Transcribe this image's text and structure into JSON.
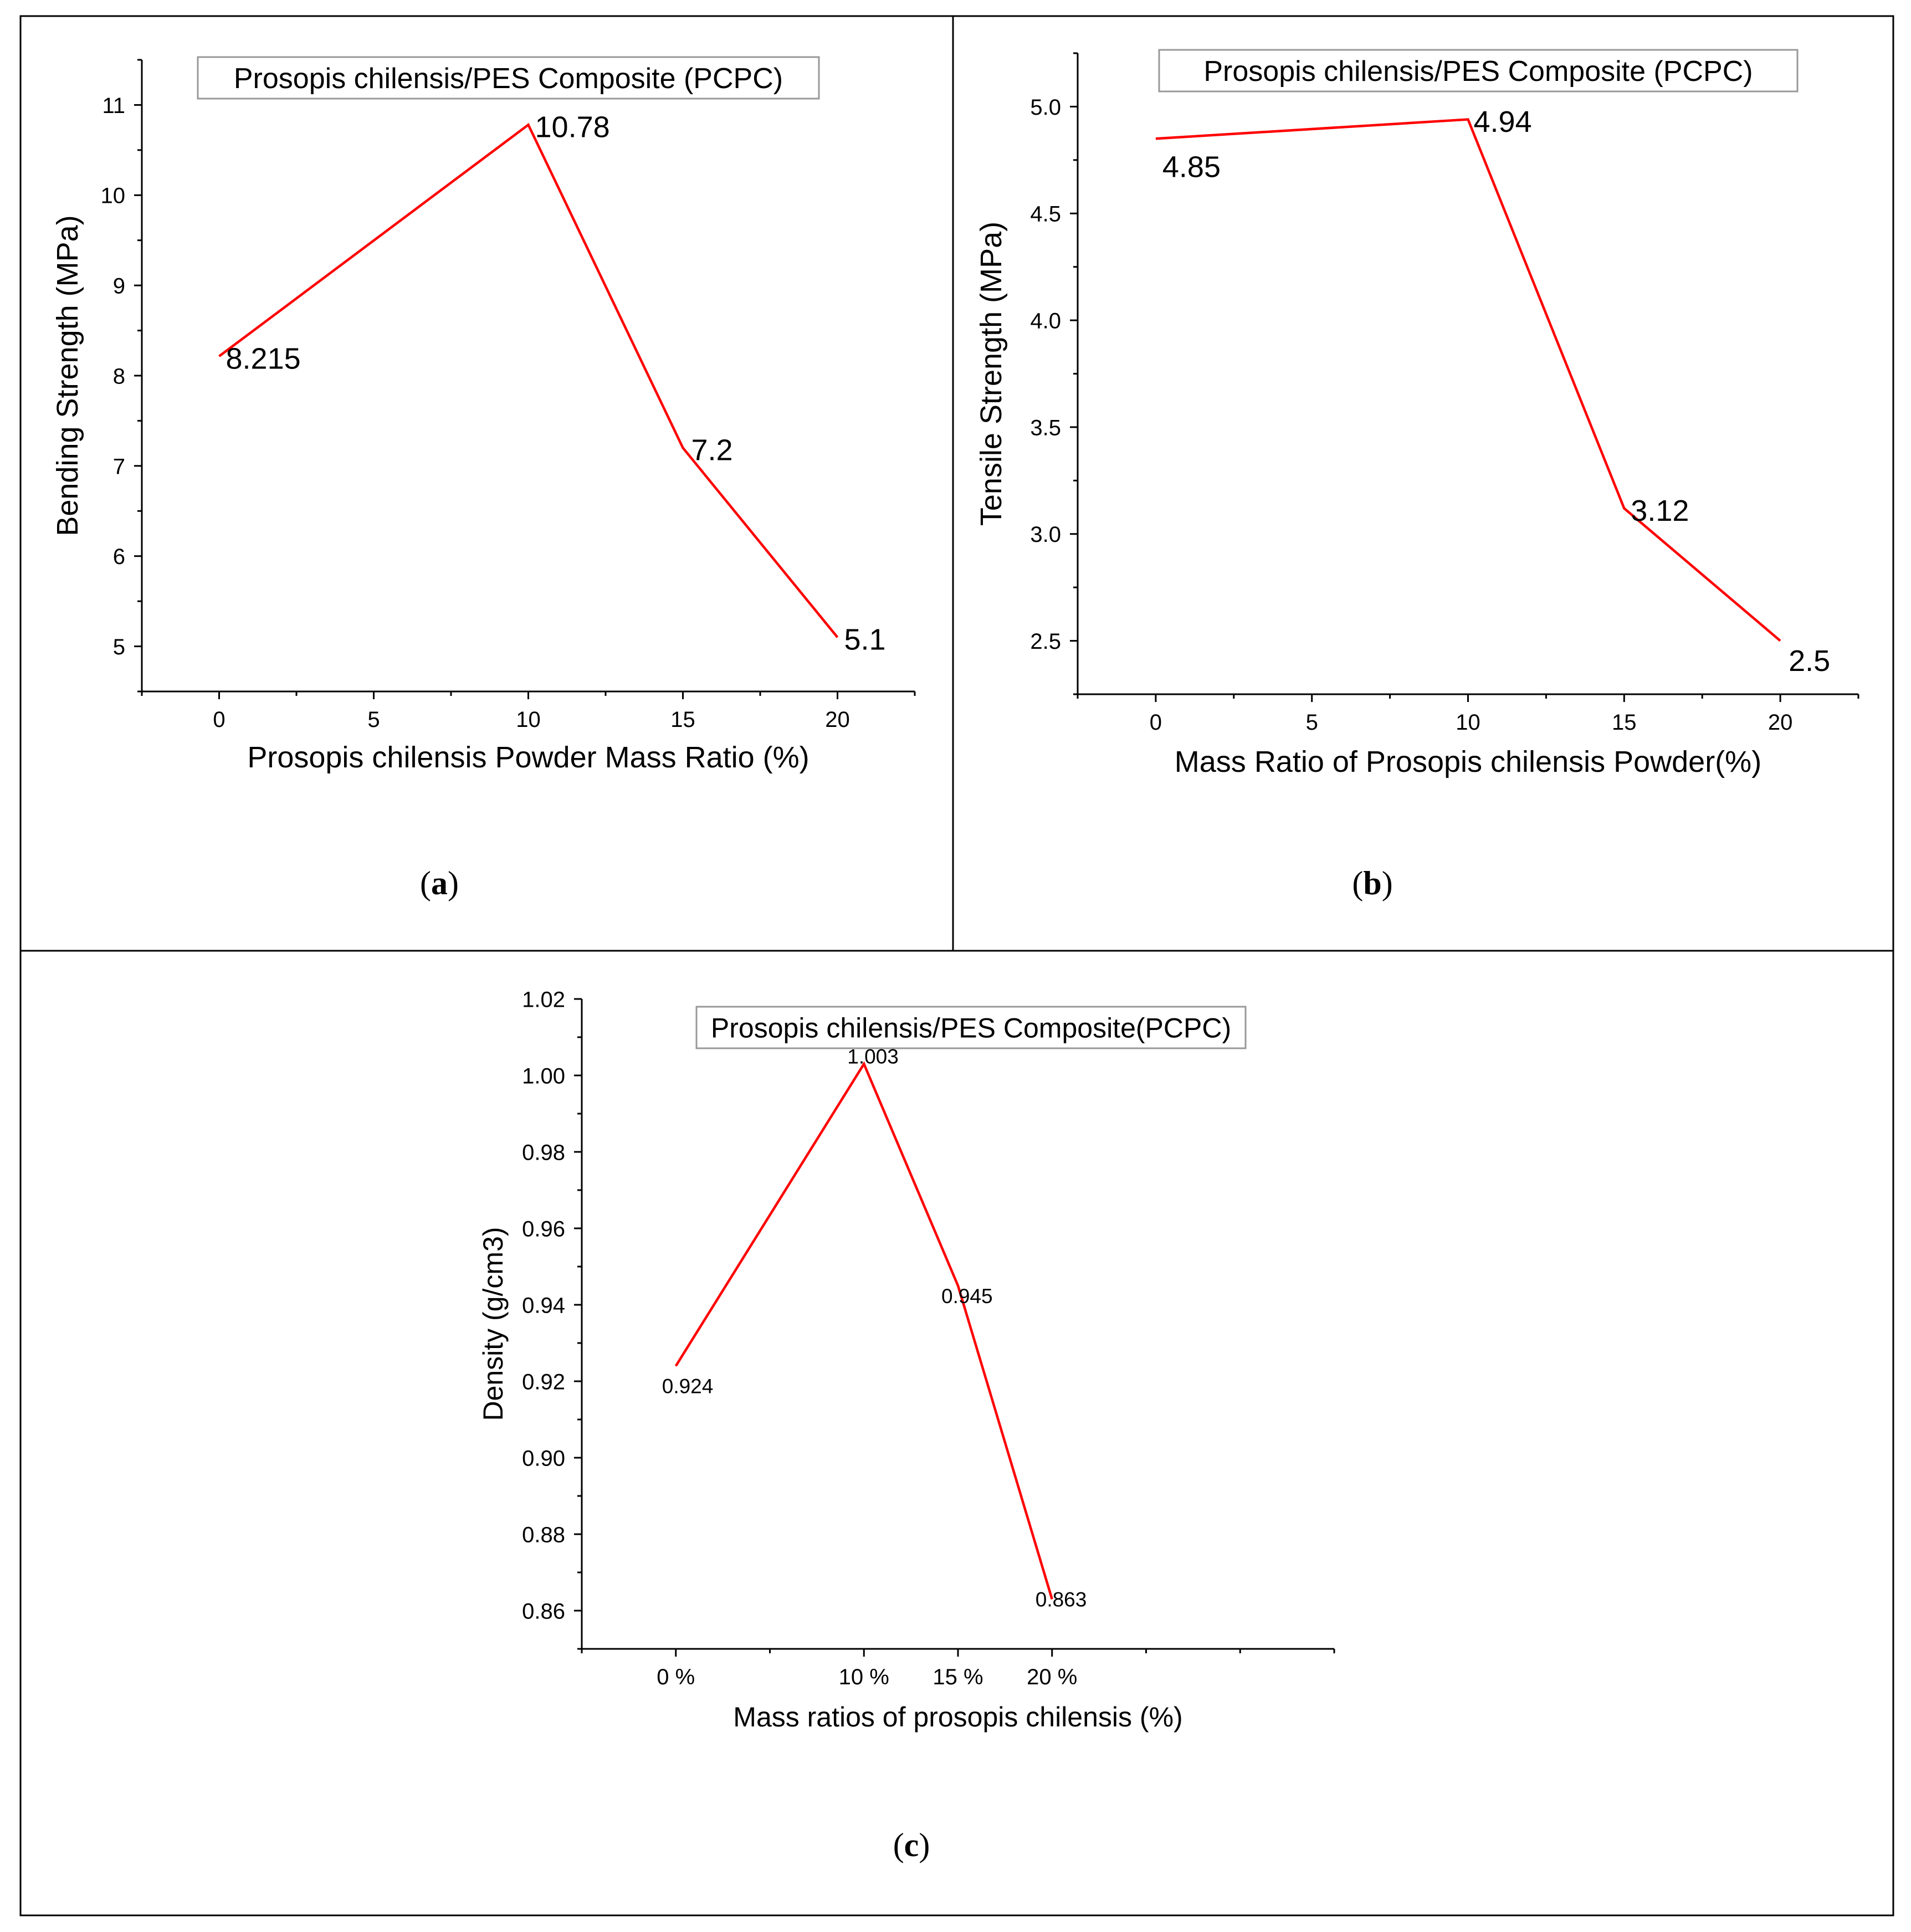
{
  "chart_data": [
    {
      "id": "a",
      "type": "line",
      "panel_label": "a",
      "title": "Prosopis chilensis/PES Composite (PCPC)",
      "xlabel": "Prosopis chilensis Powder Mass Ratio (%)",
      "ylabel": "Bending Strength (MPa)",
      "x": [
        0,
        10,
        15,
        20
      ],
      "values": [
        8.215,
        10.78,
        7.2,
        5.1
      ],
      "data_labels": [
        "8.215",
        "10.78",
        "7.2",
        "5.1"
      ],
      "xlim": [
        -2.5,
        22.5
      ],
      "ylim": [
        4.5,
        11.5
      ],
      "x_ticks": [
        0,
        5,
        10,
        15,
        20
      ],
      "x_tick_labels": [
        "0",
        "5",
        "10",
        "15",
        "20"
      ],
      "y_ticks": [
        5,
        6,
        7,
        8,
        9,
        10,
        11
      ],
      "y_tick_labels": [
        "5",
        "6",
        "7",
        "8",
        "9",
        "10",
        "11"
      ],
      "color": "#ff0000"
    },
    {
      "id": "b",
      "type": "line",
      "panel_label": "b",
      "title": "Prosopis chilensis/PES Composite (PCPC)",
      "xlabel": "Mass Ratio of Prosopis chilensis Powder(%)",
      "ylabel": "Tensile Strength (MPa)",
      "x": [
        0,
        10,
        15,
        20
      ],
      "values": [
        4.85,
        4.94,
        3.12,
        2.5
      ],
      "data_labels": [
        "4.85",
        "4.94",
        "3.12",
        "2.5"
      ],
      "xlim": [
        -2.5,
        22.5
      ],
      "ylim": [
        2.25,
        5.25
      ],
      "x_ticks": [
        0,
        5,
        10,
        15,
        20
      ],
      "x_tick_labels": [
        "0",
        "5",
        "10",
        "15",
        "20"
      ],
      "y_ticks": [
        2.5,
        3.0,
        3.5,
        4.0,
        4.5,
        5.0
      ],
      "y_tick_labels": [
        "2.5",
        "3.0",
        "3.5",
        "4.0",
        "4.5",
        "5.0"
      ],
      "color": "#ff0000"
    },
    {
      "id": "c",
      "type": "line",
      "panel_label": "c",
      "title": "Prosopis chilensis/PES Composite(PCPC)",
      "xlabel": "Mass ratios of prosopis chilensis (%)",
      "ylabel": "Density (g/cm3)",
      "x": [
        0,
        10,
        15,
        20
      ],
      "values": [
        0.924,
        1.003,
        0.945,
        0.863
      ],
      "data_labels": [
        "0.924",
        "1.003",
        "0.945",
        "0.863"
      ],
      "xlim": [
        -5,
        35
      ],
      "ylim": [
        0.85,
        1.02
      ],
      "x_ticks": [
        0,
        10,
        15,
        20
      ],
      "x_tick_labels": [
        "0 %",
        "10 %",
        "15 %",
        "20 %"
      ],
      "y_ticks": [
        0.86,
        0.88,
        0.9,
        0.92,
        0.94,
        0.96,
        0.98,
        1.0,
        1.02
      ],
      "y_tick_labels": [
        "0.86",
        "0.88",
        "0.90",
        "0.92",
        "0.94",
        "0.96",
        "0.98",
        "1.00",
        "1.02"
      ],
      "color": "#ff0000"
    }
  ]
}
